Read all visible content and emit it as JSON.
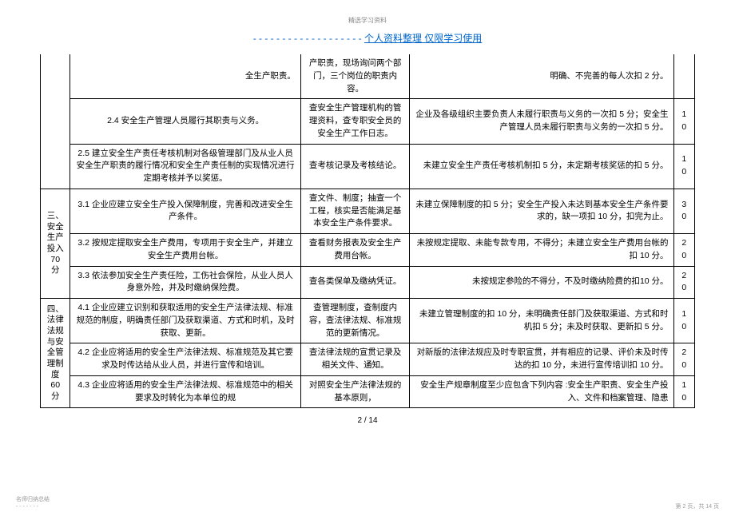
{
  "top_label": "精选学习资料",
  "header_dashes": "- - - - - - - - - - - - - - - - - - -",
  "header_title": "个人资料整理   仅限学习使用",
  "rows": {
    "r1": {
      "c2": "全生产职责。",
      "c3": "产职责，现场询问两个部门，三个岗位的职责内容。",
      "c4": "明确、不完善的每人次扣    2 分。"
    },
    "r2": {
      "c2": "2.4  安全生产管理人员履行其职责与义务。",
      "c3": "查安全生产管理机构的管理资料，查专职安全员的安全生产工作日志。",
      "c4": "企业及各级组织主要负责人未履行职责与义务的一次扣    5  分；安全生产管理人员未履行职责与义务的一次扣   5 分。",
      "c5": "1\n0"
    },
    "r3": {
      "c2": "2.5  建立安全生产责任考核机制对各级管理部门及从业人员安全生产职责的履行情况和安全生产责任制的实现情况进行定期考核并予以奖惩。",
      "c3": "查考核记录及考核结论。",
      "c4": "未建立安全生产责任考核机制扣        5 分，未定期考核奖惩的扣   5 分。",
      "c5": "1\n0"
    },
    "r4": {
      "c1": "三、\n安全\n生产\n投入\n70\n分",
      "c2": "3.1  企业应建立安全生产投入保障制度，完善和改进安全生产条件。",
      "c3": "查文件、制度；抽查一个工程，核实是否能满足基本安全生产条件要求。",
      "c4": "未建立保障制度的扣     5 分；安全生产投入未达到基本安全生产条件要求的，缺一项扣      10 分，扣完为止。",
      "c5": "3\n0"
    },
    "r5": {
      "c2": "3.2  按规定提取安全生产费用，专项用于安全生产，并建立安全生产费用台帐。",
      "c3": "查看财务报表及安全生产费用台帐。",
      "c4": "未按规定提取、未能专款专用，不得分；未建立安全生产费用台帐的扣    10 分。",
      "c5": "2\n0"
    },
    "r6": {
      "c2": "3.3  依法参加安全生产责任险，工伤社会保险，从业人员人身意外险，并及时缴纳保险费。",
      "c3": "查各类保单及缴纳凭证。",
      "c4": "未按规定参险的不得分，不及时缴纳险费的扣10 分。",
      "c5": "2\n0"
    },
    "r7": {
      "c1": "四、\n法律\n法规\n与安\n全管\n理制\n度\n60\n分",
      "c2": "4.1  企业应建立识别和获取适用的安全生产法律法规、标准规范的制度，明确责任部门及获取渠道、方式和时机，及时获取、更新。",
      "c3": "查管理制度，查制度内容，查法律法规、标准规范的更新情况。",
      "c4": "未建立管理制度的扣     10 分，未明确责任部门及获取渠道、方式和时机扣       5 分；未及时获取、更新扣   5 分。",
      "c5": "1\n0"
    },
    "r8": {
      "c2": "4.2  企业应将适用的安全生产法律法规、标准规范及其它要求及时传达给从业人员，并进行宣传和培训。",
      "c3": "查法律法规的宣贯记录及相关文件、通知。",
      "c4": "对新版的法律法规应及时专职宣贯，并有相应的记录、评价未及时传达的扣     10 分，未进行宣传培训扣   10 分。",
      "c5": "2\n0"
    },
    "r9": {
      "c2": "4.3  企业应将适用的安全生产法律法规、标准规范中的相关要求及时转化为本单位的规",
      "c3": "对照安全生产法律法规的基本原则，",
      "c4": "安全生产规章制度至少应包含下列内容         :安全生产职责、安全生产投入、文件和档案管理、隐患",
      "c5": "1\n0"
    }
  },
  "page_num": "2  /  14",
  "footer_left": "名师归纳总结\n- - - - - - -",
  "footer_right": "第 2 页，共 14 页"
}
